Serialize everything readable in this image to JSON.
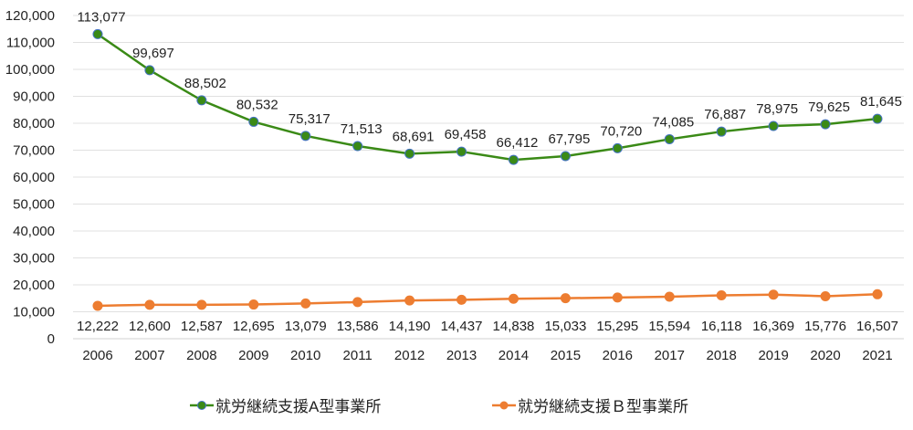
{
  "chart_data": {
    "type": "line",
    "title": "",
    "xlabel": "",
    "ylabel": "",
    "ylim": [
      0,
      120000
    ],
    "yticks": [
      0,
      10000,
      20000,
      30000,
      40000,
      50000,
      60000,
      70000,
      80000,
      90000,
      100000,
      110000,
      120000
    ],
    "ytick_labels": [
      "0",
      "10,000",
      "20,000",
      "30,000",
      "40,000",
      "50,000",
      "60,000",
      "70,000",
      "80,000",
      "90,000",
      "100,000",
      "110,000",
      "120,000"
    ],
    "categories": [
      "2006",
      "2007",
      "2008",
      "2009",
      "2010",
      "2011",
      "2012",
      "2013",
      "2014",
      "2015",
      "2016",
      "2017",
      "2018",
      "2019",
      "2020",
      "2021"
    ],
    "grid": true,
    "legend_position": "bottom",
    "series": [
      {
        "name": "就労継続支援A型事業所",
        "color": "#3a8a16",
        "marker_edge": "#4472c4",
        "values": [
          113077,
          99697,
          88502,
          80532,
          75317,
          71513,
          68691,
          69458,
          66412,
          67795,
          70720,
          74085,
          76887,
          78975,
          79625,
          81645
        ],
        "labels": [
          "113,077",
          "99,697",
          "88,502",
          "80,532",
          "75,317",
          "71,513",
          "68,691",
          "69,458",
          "66,412",
          "67,795",
          "70,720",
          "74,085",
          "76,887",
          "78,975",
          "79,625",
          "81,645"
        ]
      },
      {
        "name": "就労継続支援Ｂ型事業所",
        "color": "#ed7d31",
        "marker_edge": "#ed7d31",
        "values": [
          12222,
          12600,
          12587,
          12695,
          13079,
          13586,
          14190,
          14437,
          14838,
          15033,
          15295,
          15594,
          16118,
          16369,
          15776,
          16507
        ],
        "labels": [
          "12,222",
          "12,600",
          "12,587",
          "12,695",
          "13,079",
          "13,586",
          "14,190",
          "14,437",
          "14,838",
          "15,033",
          "15,295",
          "15,594",
          "16,118",
          "16,369",
          "15,776",
          "16,507"
        ]
      }
    ]
  }
}
